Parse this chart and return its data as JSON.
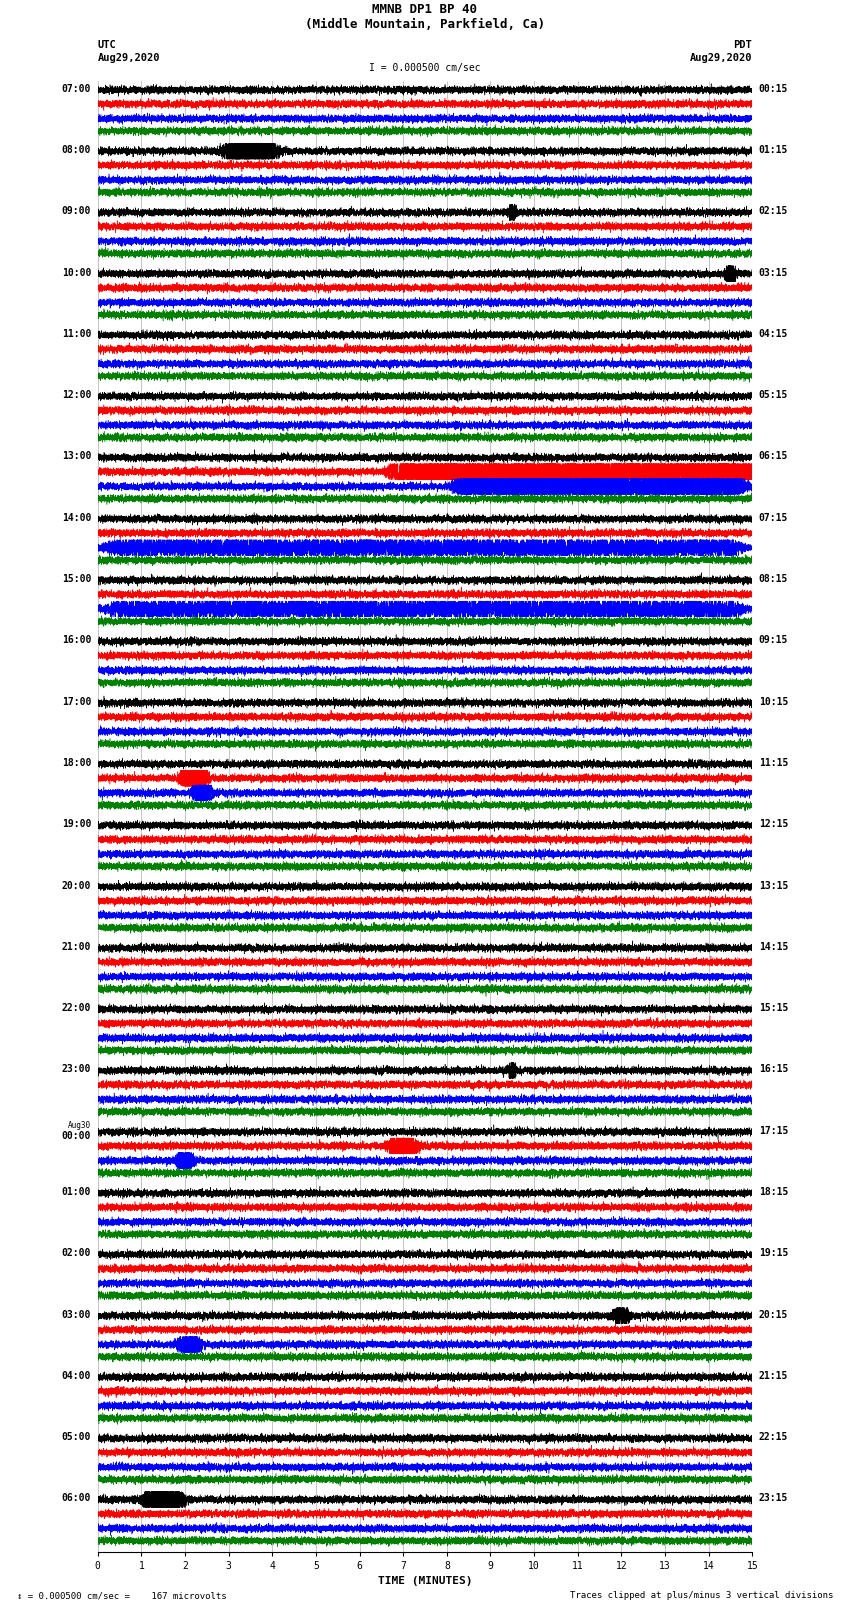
{
  "title_line1": "MMNB DP1 BP 40",
  "title_line2": "(Middle Mountain, Parkfield, Ca)",
  "scale_label": "I = 0.000500 cm/sec",
  "left_header": "UTC",
  "left_date": "Aug29,2020",
  "right_header": "PDT",
  "right_date": "Aug29,2020",
  "xlabel": "TIME (MINUTES)",
  "footer_left": "= 0.000500 cm/sec =    167 microvolts",
  "footer_right": "Traces clipped at plus/minus 3 vertical divisions",
  "bg_color": "#ffffff",
  "trace_colors": [
    "black",
    "red",
    "blue",
    "green"
  ],
  "grid_color": "#808080",
  "num_rows": 24,
  "traces_per_row": 4,
  "minutes_per_row": 15,
  "utc_labels": [
    "07:00",
    "08:00",
    "09:00",
    "10:00",
    "11:00",
    "12:00",
    "13:00",
    "14:00",
    "15:00",
    "16:00",
    "17:00",
    "18:00",
    "19:00",
    "20:00",
    "21:00",
    "22:00",
    "23:00",
    "00:00",
    "01:00",
    "02:00",
    "03:00",
    "04:00",
    "05:00",
    "06:00"
  ],
  "pdt_labels": [
    "00:15",
    "01:15",
    "02:15",
    "03:15",
    "04:15",
    "05:15",
    "06:15",
    "07:15",
    "08:15",
    "09:15",
    "10:15",
    "11:15",
    "12:15",
    "13:15",
    "14:15",
    "15:15",
    "16:15",
    "17:15",
    "18:15",
    "19:15",
    "20:15",
    "21:15",
    "22:15",
    "23:15"
  ],
  "aug30_row": 17
}
